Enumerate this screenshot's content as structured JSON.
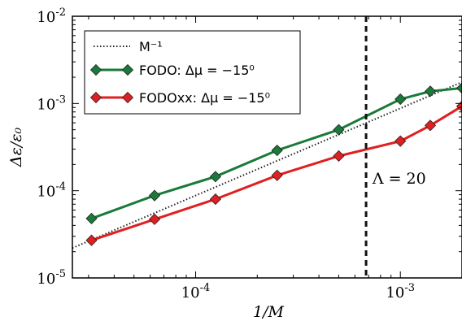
{
  "chart_data": {
    "type": "line",
    "xscale": "log",
    "yscale": "log",
    "xlim": [
      2.5e-05,
      0.002
    ],
    "ylim": [
      1e-05,
      0.01
    ],
    "xlabel": "1/M",
    "ylabel": "Δε/ε₀",
    "x_ticks": [
      {
        "value": 0.0001,
        "base": "10",
        "exp": "-4"
      },
      {
        "value": 0.001,
        "base": "10",
        "exp": "-3"
      }
    ],
    "y_ticks": [
      {
        "value": 1e-05,
        "base": "10",
        "exp": "-5"
      },
      {
        "value": 0.0001,
        "base": "10",
        "exp": "-4"
      },
      {
        "value": 0.001,
        "base": "10",
        "exp": "-3"
      },
      {
        "value": 0.01,
        "base": "10",
        "exp": "-2"
      }
    ],
    "grid": false,
    "legend_position": "top-left",
    "series": [
      {
        "name": "M⁻¹",
        "style": "dotted",
        "color": "#222222",
        "x": [
          2.5e-05,
          0.002
        ],
        "y": [
          2.2e-05,
          0.00176
        ]
      },
      {
        "name": "FODO: Δμ = −15⁰",
        "style": "line-diamond",
        "color": "#1a7a3a",
        "x": [
          3.1e-05,
          6.3e-05,
          0.000125,
          0.00025,
          0.0005,
          0.001,
          0.0014,
          0.002
        ],
        "y": [
          4.8e-05,
          8.8e-05,
          0.000145,
          0.00029,
          0.0005,
          0.00112,
          0.00138,
          0.0015
        ]
      },
      {
        "name": "FODOxx: Δμ = −15⁰",
        "style": "line-diamond",
        "color": "#e02020",
        "x": [
          3.1e-05,
          6.3e-05,
          0.000125,
          0.00025,
          0.0005,
          0.001,
          0.0014,
          0.002
        ],
        "y": [
          2.7e-05,
          4.7e-05,
          8e-05,
          0.00015,
          0.00025,
          0.00037,
          0.00056,
          0.00093
        ]
      }
    ],
    "vline": {
      "x": 0.00068,
      "style": "dashed",
      "color": "#111111"
    },
    "annotation": {
      "text": "Λ = 20",
      "x": 0.00073,
      "y": 0.00012
    }
  }
}
